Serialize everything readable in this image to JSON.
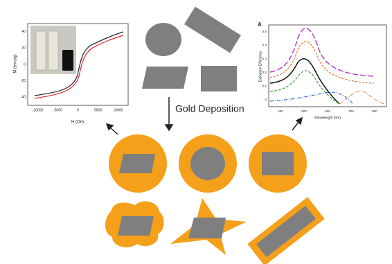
{
  "label": "Gold Deposition",
  "left_plot": {
    "x_label": "H (Oe)",
    "y_label": "M (emu/g)",
    "xticks": [
      "-10000",
      "-5000",
      "0",
      "5000",
      "10000"
    ],
    "yticks": [
      "40",
      "20",
      "0",
      "-20",
      "-40"
    ]
  },
  "right_plot": {
    "panel": "A",
    "x_label": "Wavelength (nm)",
    "y_label": "Extinction Efficiency",
    "xticks": [
      "400",
      "500",
      "600",
      "700",
      "800"
    ],
    "yticks": [
      "0.5",
      "0.4",
      "0.3",
      "0.2",
      "0.1",
      "0"
    ]
  }
}
